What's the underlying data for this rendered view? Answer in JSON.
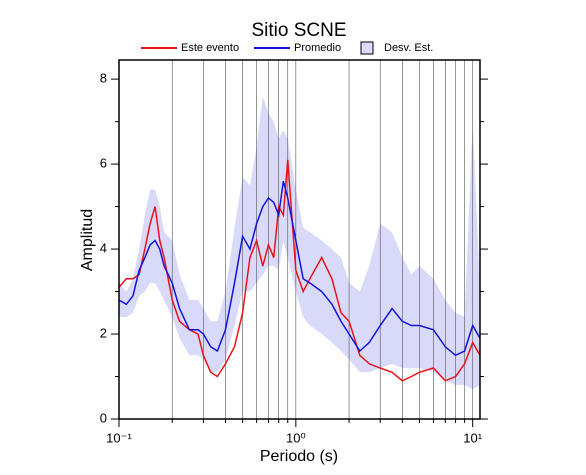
{
  "chart_data": {
    "type": "line",
    "title": "Sitio SCNE",
    "x_label": "Periodo (s)",
    "y_label": "Amplitud",
    "x_scale": "log",
    "grid": true,
    "xlim": [
      0.1,
      11
    ],
    "ylim": [
      0,
      8.45
    ],
    "xticks": [
      {
        "value": 0.1,
        "label": "10⁻¹"
      },
      {
        "value": 1,
        "label": "10⁰"
      },
      {
        "value": 10,
        "label": "10¹"
      }
    ],
    "xminorticks": [
      0.2,
      0.3,
      0.4,
      0.5,
      0.6,
      0.7,
      0.8,
      0.9,
      2,
      3,
      4,
      5,
      6,
      7,
      8,
      9
    ],
    "yticks": [
      0,
      2,
      4,
      6,
      8
    ],
    "yminorticks": [
      1,
      3,
      5,
      7
    ],
    "x": [
      0.1,
      0.11,
      0.12,
      0.13,
      0.14,
      0.15,
      0.16,
      0.17,
      0.18,
      0.2,
      0.22,
      0.25,
      0.28,
      0.3,
      0.33,
      0.36,
      0.4,
      0.45,
      0.5,
      0.55,
      0.6,
      0.65,
      0.7,
      0.75,
      0.8,
      0.85,
      0.9,
      1.0,
      1.1,
      1.2,
      1.4,
      1.6,
      1.8,
      2.0,
      2.3,
      2.6,
      3.0,
      3.5,
      4,
      4.5,
      5,
      6,
      7,
      8,
      9,
      10,
      11
    ],
    "band": {
      "name": "Desv. Est.",
      "color": "#d9d9fa",
      "upper": [
        3.2,
        3.0,
        3.3,
        4.0,
        4.8,
        5.4,
        5.4,
        5.0,
        4.4,
        4.2,
        3.4,
        2.8,
        2.8,
        2.6,
        2.3,
        2.3,
        3.0,
        4.5,
        5.7,
        5.5,
        6.4,
        7.6,
        7.2,
        7.0,
        6.6,
        6.8,
        6.6,
        5.4,
        4.5,
        4.4,
        4.2,
        4.0,
        3.8,
        3.2,
        3.0,
        3.6,
        4.6,
        4.4,
        3.8,
        3.4,
        3.6,
        3.3,
        2.8,
        2.5,
        2.4,
        7.0,
        3.0
      ],
      "lower": [
        2.4,
        2.4,
        2.5,
        2.9,
        3.0,
        3.2,
        3.2,
        3.0,
        2.8,
        2.4,
        1.9,
        1.5,
        1.5,
        1.4,
        1.1,
        1.1,
        1.4,
        2.2,
        3.0,
        3.0,
        3.2,
        3.4,
        3.6,
        3.6,
        3.5,
        4.2,
        3.8,
        3.0,
        2.4,
        2.2,
        2.0,
        1.8,
        1.6,
        1.4,
        1.1,
        1.1,
        1.2,
        1.3,
        1.2,
        1.2,
        1.2,
        1.1,
        0.9,
        0.8,
        0.8,
        0.7,
        0.8
      ]
    },
    "series": [
      {
        "name": "Este evento",
        "color": "#e8141a",
        "values": [
          3.1,
          3.3,
          3.3,
          3.4,
          4.0,
          4.6,
          5.0,
          4.2,
          3.8,
          2.8,
          2.3,
          2.1,
          2.0,
          1.5,
          1.1,
          1.0,
          1.3,
          1.7,
          2.5,
          3.8,
          4.2,
          3.6,
          4.1,
          3.8,
          5.0,
          4.8,
          6.1,
          3.5,
          3.0,
          3.3,
          3.8,
          3.3,
          2.5,
          2.3,
          1.5,
          1.3,
          1.2,
          1.1,
          0.9,
          1.0,
          1.1,
          1.2,
          0.9,
          1.0,
          1.3,
          1.8,
          1.5
        ]
      },
      {
        "name": "Promedio",
        "color": "#1414d8",
        "values": [
          2.8,
          2.7,
          2.9,
          3.5,
          3.8,
          4.1,
          4.2,
          4.0,
          3.6,
          3.2,
          2.6,
          2.1,
          2.1,
          2.0,
          1.7,
          1.6,
          2.1,
          3.2,
          4.3,
          4.0,
          4.6,
          5.0,
          5.2,
          5.1,
          4.8,
          5.6,
          5.2,
          4.2,
          3.3,
          3.2,
          3.0,
          2.7,
          2.3,
          2.0,
          1.6,
          1.8,
          2.2,
          2.6,
          2.3,
          2.2,
          2.2,
          2.1,
          1.7,
          1.5,
          1.6,
          2.2,
          1.9
        ]
      }
    ]
  }
}
